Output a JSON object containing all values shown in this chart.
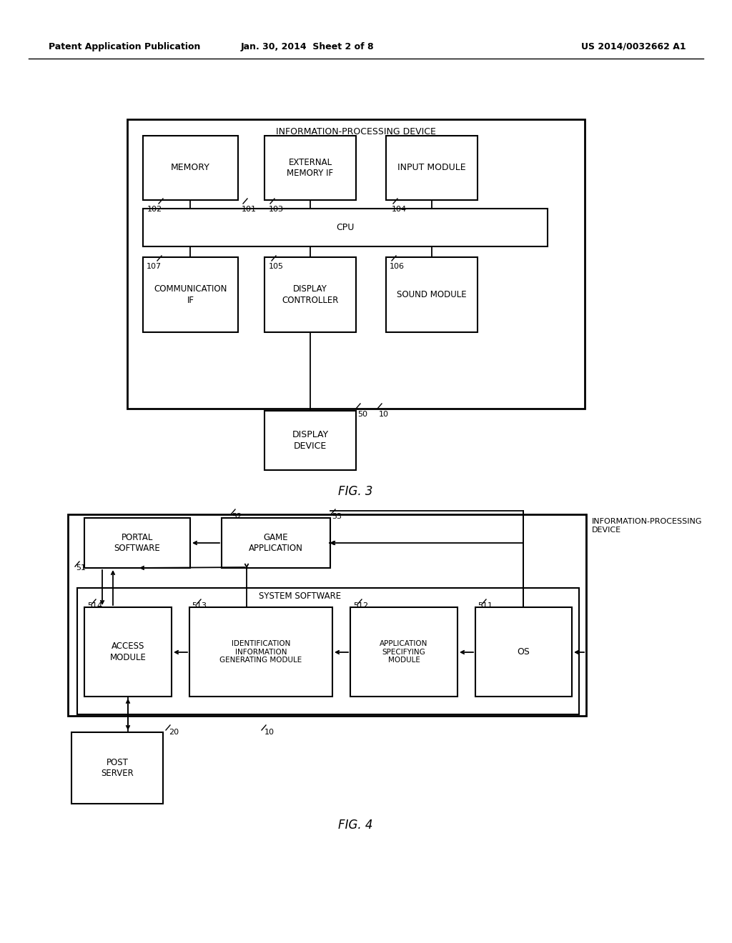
{
  "bg_color": "#ffffff",
  "line_color": "#000000",
  "header_left": "Patent Application Publication",
  "header_mid": "Jan. 30, 2014  Sheet 2 of 8",
  "header_right": "US 2014/0032662 A1"
}
